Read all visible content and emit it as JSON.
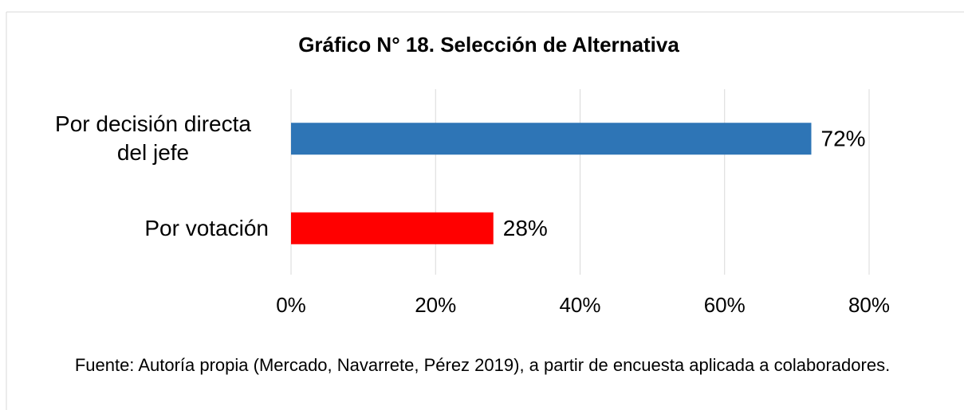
{
  "chart_data": {
    "type": "barh",
    "title": "Gráfico N° 18. Selección de Alternativa",
    "categories": [
      "Por decisión directa del jefe",
      "Por votación"
    ],
    "values": [
      72,
      28
    ],
    "value_labels": [
      "72%",
      "28%"
    ],
    "colors": [
      "#2e75b6",
      "#ff0000"
    ],
    "xlim": [
      0,
      80
    ],
    "xticks": [
      {
        "value": 0,
        "label": "0%"
      },
      {
        "value": 20,
        "label": "20%"
      },
      {
        "value": 40,
        "label": "40%"
      },
      {
        "value": 60,
        "label": "60%"
      },
      {
        "value": 80,
        "label": "80%"
      }
    ],
    "grid": true,
    "source": "Fuente: Autoría propia (Mercado, Navarrete, Pérez 2019), a partir de encuesta aplicada a colaboradores."
  }
}
